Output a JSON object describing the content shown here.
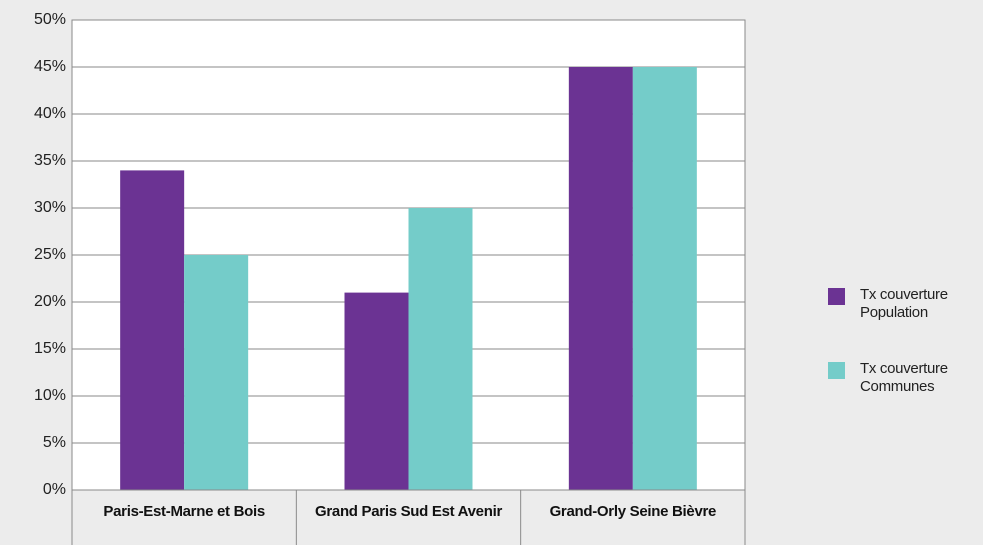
{
  "chart_data": {
    "type": "bar",
    "categories": [
      "Paris-Est-Marne et Bois",
      "Grand Paris Sud Est Avenir",
      "Grand-Orly Seine Bièvre"
    ],
    "series": [
      {
        "name": "Tx couverture Population",
        "color": "#6b3393",
        "values": [
          34,
          21,
          45
        ]
      },
      {
        "name": "Tx couverture Communes",
        "color": "#74ccc9",
        "values": [
          25,
          30,
          45
        ]
      }
    ],
    "ylim": [
      0,
      50
    ],
    "yticks": [
      {
        "value": 0,
        "label": "0%"
      },
      {
        "value": 5,
        "label": "5%"
      },
      {
        "value": 10,
        "label": "10%"
      },
      {
        "value": 15,
        "label": "15%"
      },
      {
        "value": 20,
        "label": "20%"
      },
      {
        "value": 25,
        "label": "25%"
      },
      {
        "value": 30,
        "label": "30%"
      },
      {
        "value": 35,
        "label": "35%"
      },
      {
        "value": 40,
        "label": "40%"
      },
      {
        "value": 45,
        "label": "45%"
      },
      {
        "value": 50,
        "label": "50%"
      }
    ],
    "grid": true,
    "legend": "right"
  }
}
